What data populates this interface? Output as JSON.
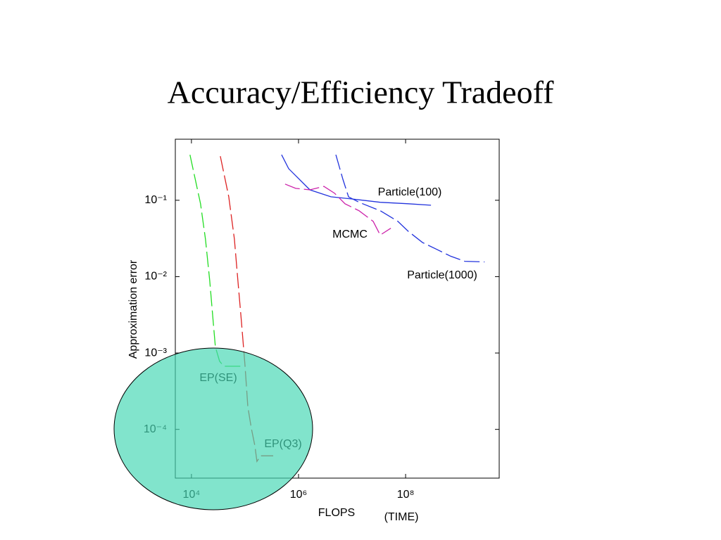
{
  "chart_data": {
    "type": "line",
    "title": "Accuracy/Efficiency Tradeoff",
    "x_label": "FLOPS",
    "x_note": "(TIME)",
    "y_label": "Approximation error",
    "x_log": true,
    "y_log": true,
    "grid": false,
    "xlim": [
      5000,
      5600000000
    ],
    "ylim": [
      2.3e-05,
      0.63
    ],
    "xticks": [
      {
        "value": 10000,
        "label": "10⁴"
      },
      {
        "value": 1000000,
        "label": "10⁶"
      },
      {
        "value": 100000000,
        "label": "10⁸"
      }
    ],
    "yticks": [
      {
        "value": 0.1,
        "label": "10⁻¹"
      },
      {
        "value": 0.01,
        "label": "10⁻²"
      },
      {
        "value": 0.001,
        "label": "10⁻³"
      },
      {
        "value": 0.0001,
        "label": "10⁻⁴"
      }
    ],
    "series": [
      {
        "name": "EP(SE)",
        "color": "#22dd22",
        "dashed": true,
        "x": [
          9400,
          14800,
          18300,
          22000,
          25600,
          28000,
          33600,
          40300,
          86000
        ],
        "values": [
          0.394,
          0.09,
          0.031,
          0.0088,
          0.0025,
          0.0012,
          0.00078,
          0.00067,
          0.00067
        ]
      },
      {
        "name": "EP(Q3)",
        "color": "#dd2222",
        "dashed": true,
        "x": [
          34600,
          49800,
          63500,
          73800,
          86000,
          100000,
          113000,
          131000,
          153000,
          167000,
          195000,
          336000
        ],
        "values": [
          0.378,
          0.111,
          0.031,
          0.0088,
          0.0025,
          0.0007,
          0.000197,
          0.000104,
          6.1e-05,
          3.8e-05,
          4.5e-05,
          4.5e-05
        ]
      },
      {
        "name": "Particle(100)",
        "color": "#2233dd",
        "dashed": false,
        "x": [
          483000,
          655000,
          1630000,
          4030000,
          10000000,
          33600000,
          113000000,
          298000000
        ],
        "values": [
          0.394,
          0.259,
          0.137,
          0.111,
          0.104,
          0.094,
          0.09,
          0.086
        ]
      },
      {
        "name": "Particle(1000)",
        "color": "#2233dd",
        "dashed": true,
        "x": [
          4980000,
          6750000,
          8600000,
          13500000,
          33600000,
          71600000,
          113000000,
          207000000,
          379000000,
          695000000,
          1270000000,
          2980000000
        ],
        "values": [
          0.394,
          0.188,
          0.111,
          0.094,
          0.073,
          0.053,
          0.039,
          0.028,
          0.0228,
          0.0185,
          0.0159,
          0.0156
        ]
      },
      {
        "name": "MCMC",
        "color": "#cc22aa",
        "dashed": true,
        "x": [
          562000,
          885000,
          1630000,
          2980000,
          4690000,
          7380000,
          13500000,
          24800000,
          33600000,
          53000000
        ],
        "values": [
          0.163,
          0.143,
          0.137,
          0.152,
          0.124,
          0.09,
          0.073,
          0.053,
          0.035,
          0.043
        ]
      }
    ]
  }
}
